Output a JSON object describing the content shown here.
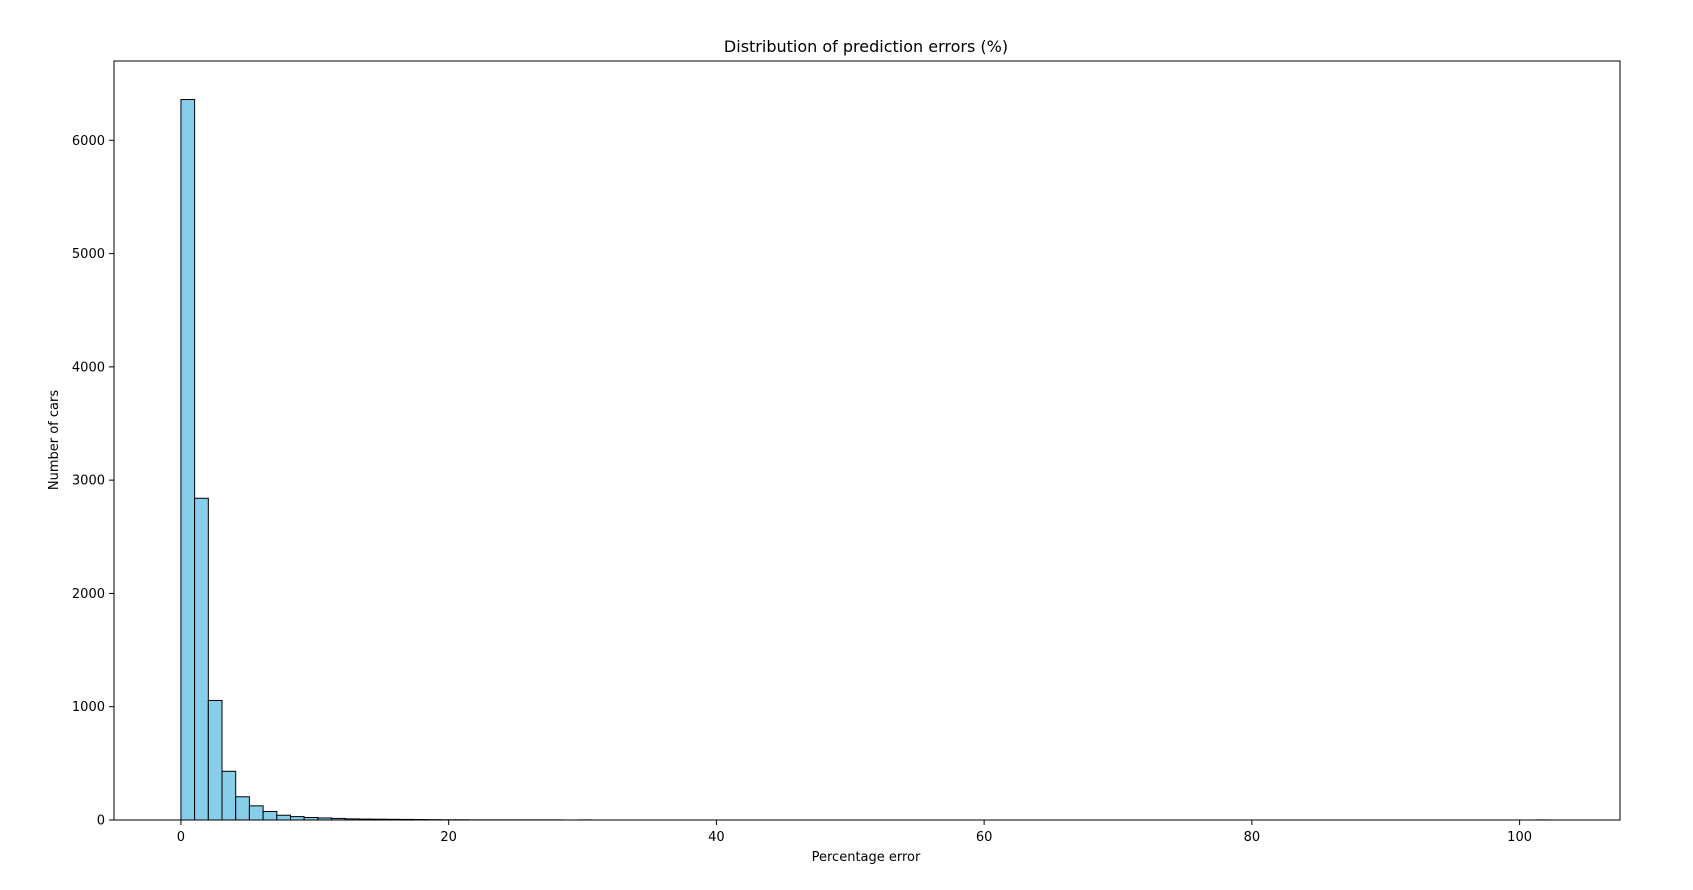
{
  "chart_data": {
    "type": "bar",
    "title": "Distribution of prediction errors (%)",
    "xlabel": "Percentage error",
    "ylabel": "Number of cars",
    "xlim": [
      -5,
      107.5
    ],
    "ylim": [
      0,
      6700
    ],
    "xticks": [
      0,
      20,
      40,
      60,
      80,
      100
    ],
    "yticks": [
      0,
      1000,
      2000,
      3000,
      4000,
      5000,
      6000
    ],
    "bin_start": 0,
    "bin_width": 1.023,
    "bar_color": "#87ceeb",
    "edge_color": "#000000",
    "grid": false,
    "values": [
      6360,
      2840,
      1055,
      430,
      205,
      125,
      75,
      42,
      30,
      22,
      18,
      14,
      10,
      8,
      7,
      6,
      5,
      4,
      3,
      2,
      2,
      1,
      1,
      1,
      1,
      1,
      1,
      1,
      0,
      1,
      0,
      0,
      0,
      0,
      0,
      0,
      0,
      0,
      0,
      0,
      0,
      0,
      0,
      0,
      0,
      0,
      0,
      0,
      0,
      0,
      0,
      0,
      0,
      0,
      0,
      0,
      0,
      0,
      0,
      0,
      0,
      0,
      0,
      0,
      0,
      0,
      0,
      0,
      0,
      0,
      0,
      0,
      0,
      0,
      0,
      0,
      0,
      0,
      0,
      0,
      0,
      0,
      0,
      0,
      0,
      0,
      0,
      0,
      0,
      0,
      0,
      0,
      0,
      0,
      0,
      0,
      0,
      0,
      0,
      1
    ]
  }
}
